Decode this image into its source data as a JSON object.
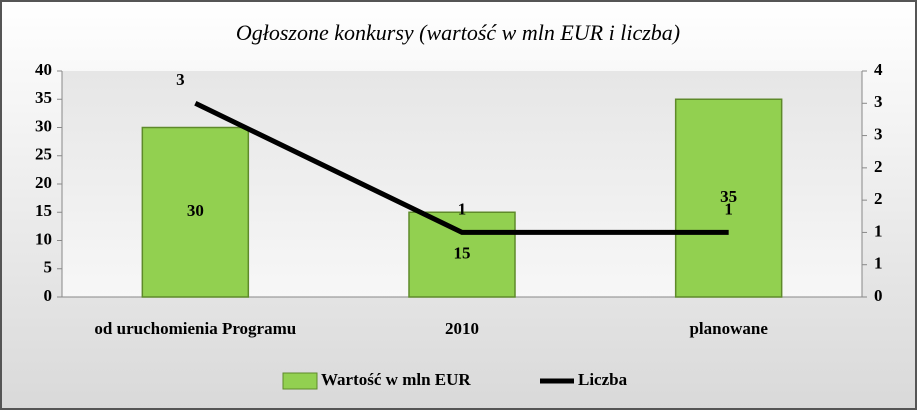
{
  "chart_data": {
    "type": "bar_line",
    "title": "Ogłoszone konkursy (wartość w mln EUR i liczba)",
    "categories": [
      "od uruchomienia Programu",
      "2010",
      "planowane"
    ],
    "series": [
      {
        "name": "Wartość w mln EUR",
        "type": "bar",
        "color": "#92d050",
        "values": [
          30,
          15,
          35
        ]
      },
      {
        "name": "Liczba",
        "type": "line",
        "color": "#000000",
        "axis": "y2",
        "values": [
          3,
          1,
          1
        ]
      }
    ],
    "ylim": [
      0,
      40
    ],
    "yticks": [
      0,
      5,
      10,
      15,
      20,
      25,
      30,
      35,
      40
    ],
    "y2lim": [
      0,
      3.5
    ],
    "y2ticks": [
      0,
      {
        "value": 0.5,
        "label": "1"
      },
      1,
      {
        "value": 1.5,
        "label": "2"
      },
      2,
      {
        "value": 2.5,
        "label": "3"
      },
      3,
      {
        "value": 3.5,
        "label": "4"
      }
    ],
    "legend": "bottom"
  }
}
